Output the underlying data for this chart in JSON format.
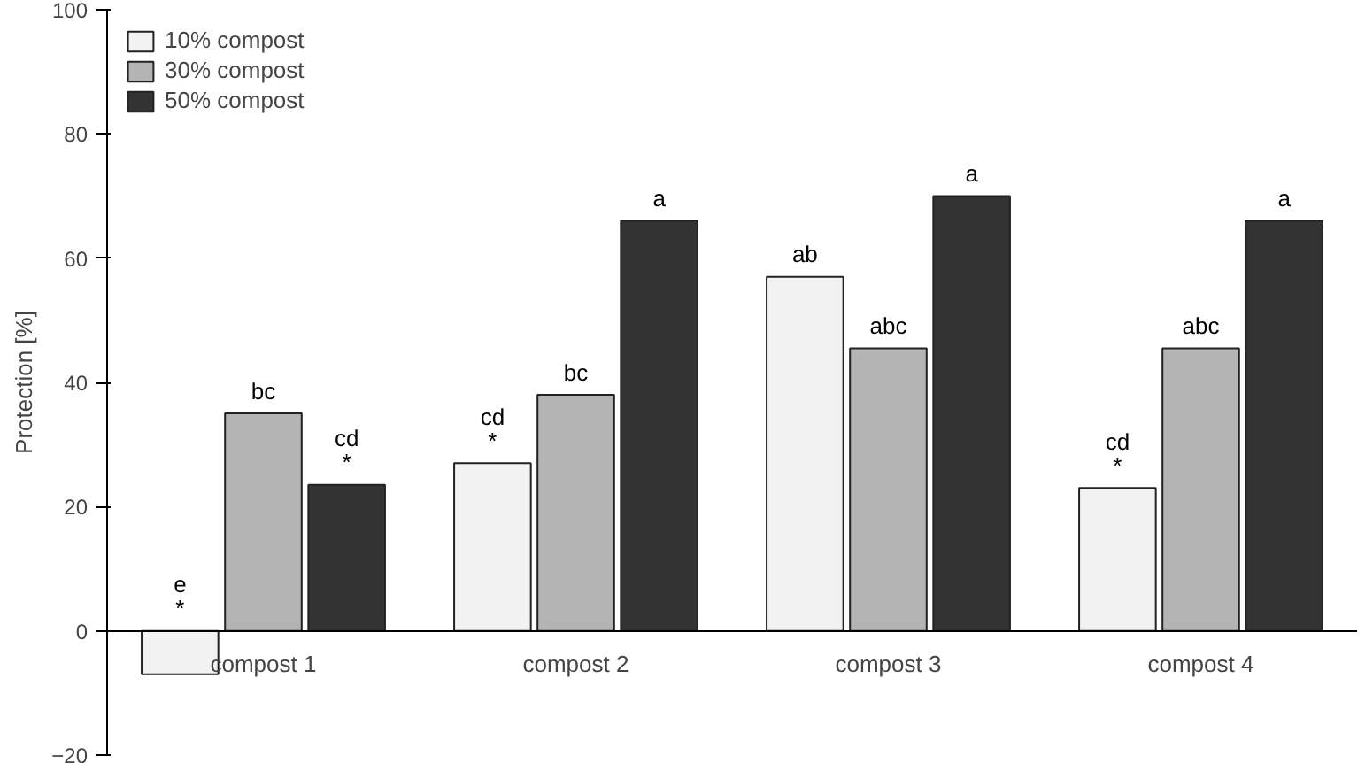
{
  "chart_data": {
    "type": "bar",
    "ylabel": "Protection [%]",
    "categories": [
      "compost 1",
      "compost 2",
      "compost 3",
      "compost 4"
    ],
    "series": [
      {
        "name": "10% compost",
        "color": "#f2f2f2",
        "values": [
          -7,
          27,
          57,
          23
        ],
        "value_labels": [
          "e\n*",
          "cd\n*",
          "ab",
          "cd\n*"
        ]
      },
      {
        "name": "30% compost",
        "color": "#b4b4b4",
        "values": [
          35,
          38,
          45.5,
          45.5
        ],
        "value_labels": [
          "bc",
          "bc",
          "abc",
          "abc"
        ]
      },
      {
        "name": "50% compost",
        "color": "#333333",
        "values": [
          23.5,
          66,
          70,
          66
        ],
        "value_labels": [
          "cd\n*",
          "a",
          "a",
          "a"
        ]
      }
    ],
    "ylim": [
      -20,
      100
    ],
    "yticks": [
      -20,
      0,
      20,
      40,
      60,
      80,
      100
    ],
    "grid": false,
    "legend": "top left"
  }
}
